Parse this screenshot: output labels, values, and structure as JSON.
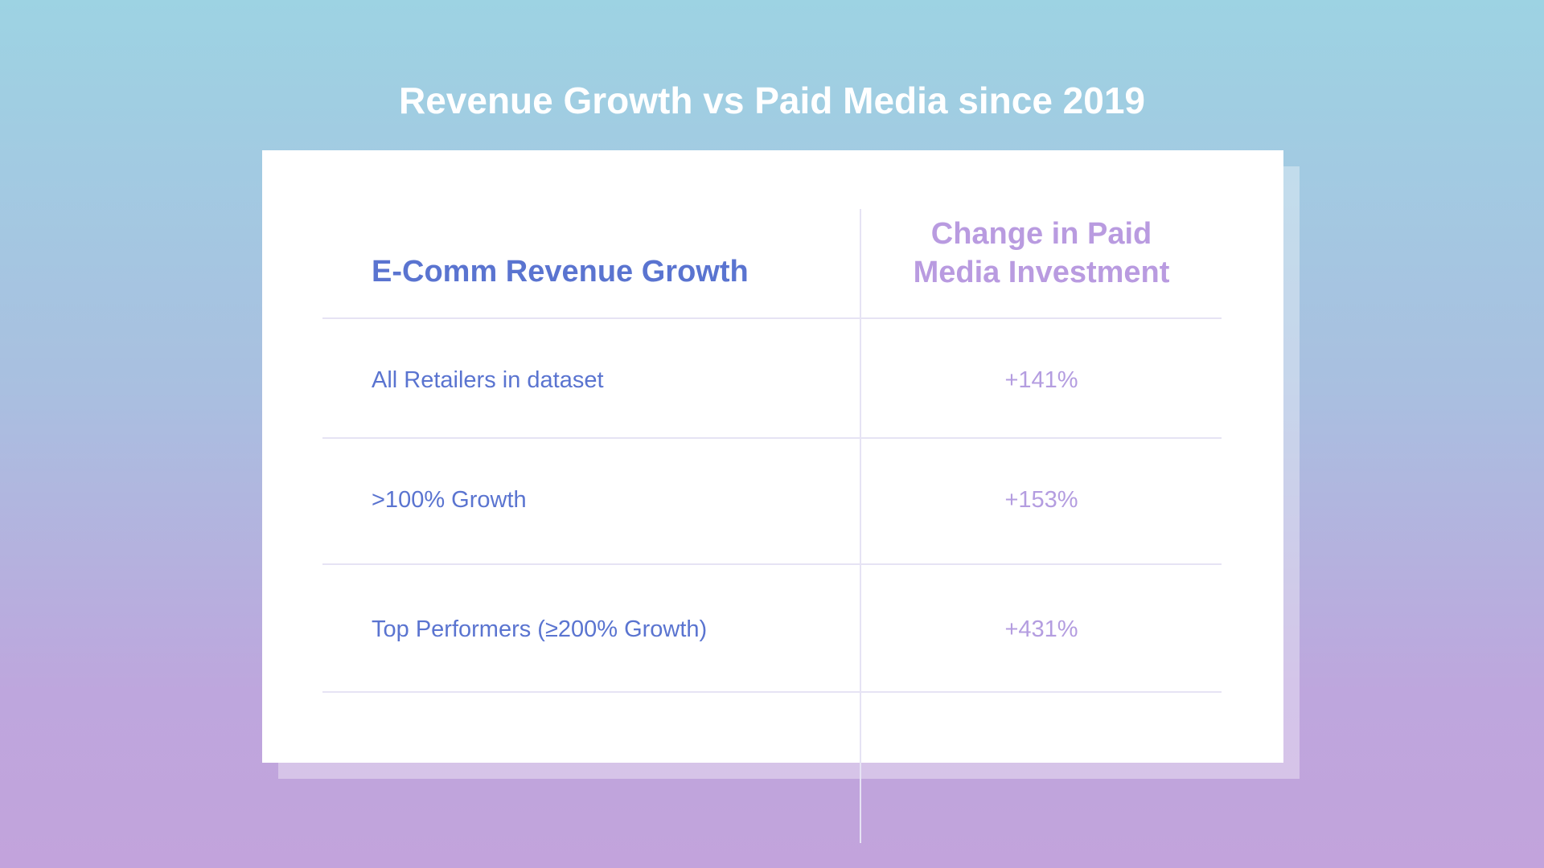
{
  "title": "Revenue Growth vs Paid Media since 2019",
  "table": {
    "headers": [
      "E-Comm Revenue Growth",
      "Change in Paid",
      "Media Investment"
    ],
    "rows": [
      {
        "label": "All Retailers in dataset",
        "value": "+141%"
      },
      {
        "label": ">100% Growth",
        "value": "+153%"
      },
      {
        "label": "Top Performers (≥200% Growth)",
        "value": "+431%"
      }
    ]
  }
}
